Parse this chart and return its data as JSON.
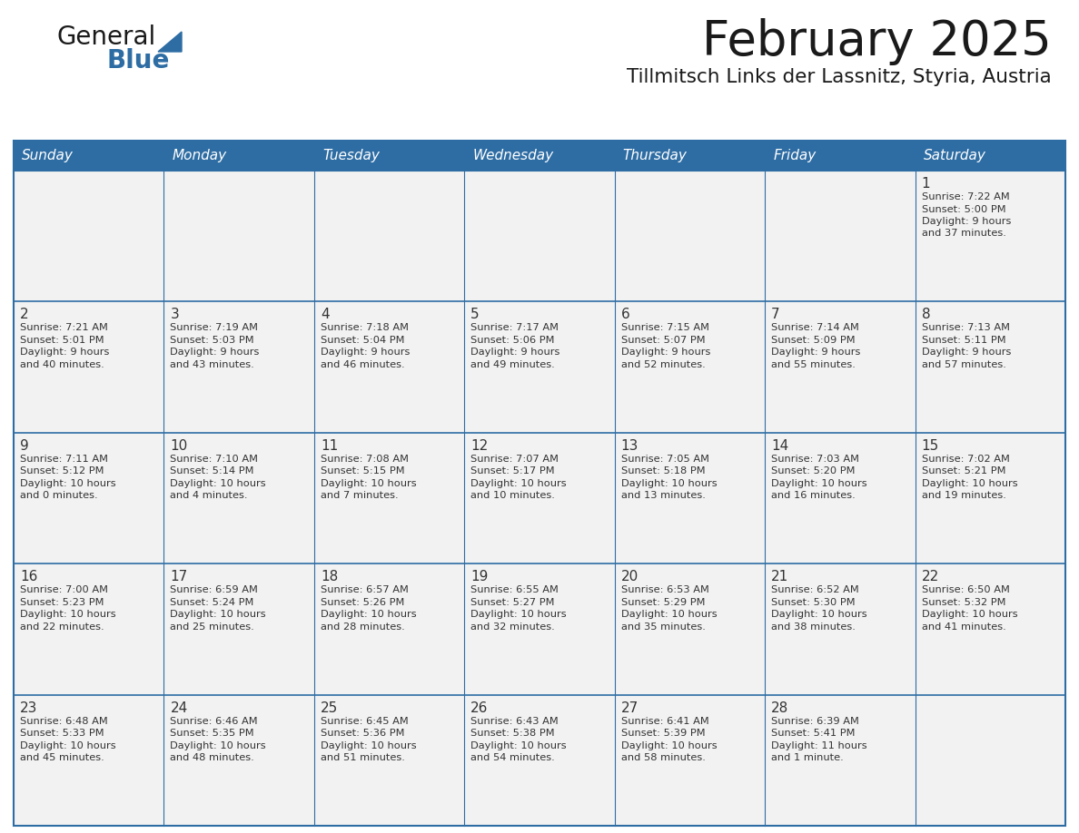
{
  "title": "February 2025",
  "subtitle": "Tillmitsch Links der Lassnitz, Styria, Austria",
  "header_bg": "#2E6DA4",
  "header_text_color": "#FFFFFF",
  "cell_bg": "#F2F2F2",
  "border_color": "#2E6DA4",
  "divider_color": "#2E6DA4",
  "text_color": "#333333",
  "days_of_week": [
    "Sunday",
    "Monday",
    "Tuesday",
    "Wednesday",
    "Thursday",
    "Friday",
    "Saturday"
  ],
  "logo_general_color": "#1a1a1a",
  "logo_blue_color": "#2E6DA4",
  "calendar_data": [
    [
      {
        "day": "",
        "info": ""
      },
      {
        "day": "",
        "info": ""
      },
      {
        "day": "",
        "info": ""
      },
      {
        "day": "",
        "info": ""
      },
      {
        "day": "",
        "info": ""
      },
      {
        "day": "",
        "info": ""
      },
      {
        "day": "1",
        "info": "Sunrise: 7:22 AM\nSunset: 5:00 PM\nDaylight: 9 hours\nand 37 minutes."
      }
    ],
    [
      {
        "day": "2",
        "info": "Sunrise: 7:21 AM\nSunset: 5:01 PM\nDaylight: 9 hours\nand 40 minutes."
      },
      {
        "day": "3",
        "info": "Sunrise: 7:19 AM\nSunset: 5:03 PM\nDaylight: 9 hours\nand 43 minutes."
      },
      {
        "day": "4",
        "info": "Sunrise: 7:18 AM\nSunset: 5:04 PM\nDaylight: 9 hours\nand 46 minutes."
      },
      {
        "day": "5",
        "info": "Sunrise: 7:17 AM\nSunset: 5:06 PM\nDaylight: 9 hours\nand 49 minutes."
      },
      {
        "day": "6",
        "info": "Sunrise: 7:15 AM\nSunset: 5:07 PM\nDaylight: 9 hours\nand 52 minutes."
      },
      {
        "day": "7",
        "info": "Sunrise: 7:14 AM\nSunset: 5:09 PM\nDaylight: 9 hours\nand 55 minutes."
      },
      {
        "day": "8",
        "info": "Sunrise: 7:13 AM\nSunset: 5:11 PM\nDaylight: 9 hours\nand 57 minutes."
      }
    ],
    [
      {
        "day": "9",
        "info": "Sunrise: 7:11 AM\nSunset: 5:12 PM\nDaylight: 10 hours\nand 0 minutes."
      },
      {
        "day": "10",
        "info": "Sunrise: 7:10 AM\nSunset: 5:14 PM\nDaylight: 10 hours\nand 4 minutes."
      },
      {
        "day": "11",
        "info": "Sunrise: 7:08 AM\nSunset: 5:15 PM\nDaylight: 10 hours\nand 7 minutes."
      },
      {
        "day": "12",
        "info": "Sunrise: 7:07 AM\nSunset: 5:17 PM\nDaylight: 10 hours\nand 10 minutes."
      },
      {
        "day": "13",
        "info": "Sunrise: 7:05 AM\nSunset: 5:18 PM\nDaylight: 10 hours\nand 13 minutes."
      },
      {
        "day": "14",
        "info": "Sunrise: 7:03 AM\nSunset: 5:20 PM\nDaylight: 10 hours\nand 16 minutes."
      },
      {
        "day": "15",
        "info": "Sunrise: 7:02 AM\nSunset: 5:21 PM\nDaylight: 10 hours\nand 19 minutes."
      }
    ],
    [
      {
        "day": "16",
        "info": "Sunrise: 7:00 AM\nSunset: 5:23 PM\nDaylight: 10 hours\nand 22 minutes."
      },
      {
        "day": "17",
        "info": "Sunrise: 6:59 AM\nSunset: 5:24 PM\nDaylight: 10 hours\nand 25 minutes."
      },
      {
        "day": "18",
        "info": "Sunrise: 6:57 AM\nSunset: 5:26 PM\nDaylight: 10 hours\nand 28 minutes."
      },
      {
        "day": "19",
        "info": "Sunrise: 6:55 AM\nSunset: 5:27 PM\nDaylight: 10 hours\nand 32 minutes."
      },
      {
        "day": "20",
        "info": "Sunrise: 6:53 AM\nSunset: 5:29 PM\nDaylight: 10 hours\nand 35 minutes."
      },
      {
        "day": "21",
        "info": "Sunrise: 6:52 AM\nSunset: 5:30 PM\nDaylight: 10 hours\nand 38 minutes."
      },
      {
        "day": "22",
        "info": "Sunrise: 6:50 AM\nSunset: 5:32 PM\nDaylight: 10 hours\nand 41 minutes."
      }
    ],
    [
      {
        "day": "23",
        "info": "Sunrise: 6:48 AM\nSunset: 5:33 PM\nDaylight: 10 hours\nand 45 minutes."
      },
      {
        "day": "24",
        "info": "Sunrise: 6:46 AM\nSunset: 5:35 PM\nDaylight: 10 hours\nand 48 minutes."
      },
      {
        "day": "25",
        "info": "Sunrise: 6:45 AM\nSunset: 5:36 PM\nDaylight: 10 hours\nand 51 minutes."
      },
      {
        "day": "26",
        "info": "Sunrise: 6:43 AM\nSunset: 5:38 PM\nDaylight: 10 hours\nand 54 minutes."
      },
      {
        "day": "27",
        "info": "Sunrise: 6:41 AM\nSunset: 5:39 PM\nDaylight: 10 hours\nand 58 minutes."
      },
      {
        "day": "28",
        "info": "Sunrise: 6:39 AM\nSunset: 5:41 PM\nDaylight: 11 hours\nand 1 minute."
      },
      {
        "day": "",
        "info": ""
      }
    ]
  ]
}
